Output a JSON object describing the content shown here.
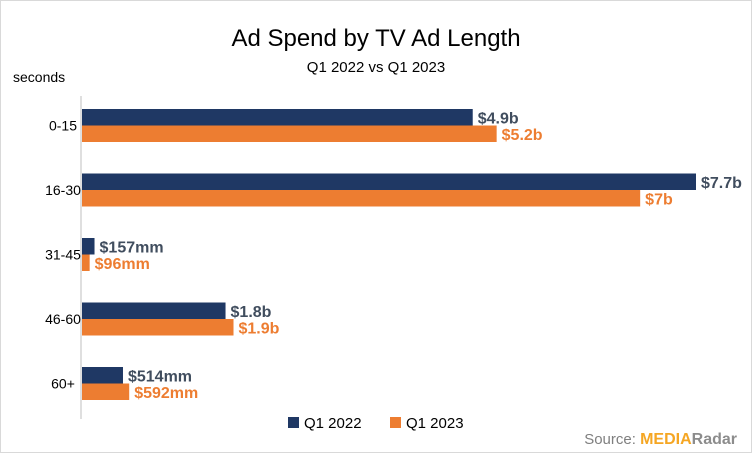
{
  "chart_data": {
    "type": "bar",
    "orientation": "horizontal",
    "title": "Ad Spend by TV Ad Length",
    "subtitle": "Q1 2022 vs Q1 2023",
    "ylabel": "seconds",
    "categories": [
      "0-15",
      "16-30",
      "31-45",
      "46-60",
      "60+"
    ],
    "unit": "billions USD",
    "xlim": [
      0,
      7.7
    ],
    "grid": false,
    "legend_position": "bottom",
    "series": [
      {
        "name": "Q1 2022",
        "color": "#1f3864",
        "values": [
          4.9,
          7.7,
          0.157,
          1.8,
          0.514
        ],
        "labels": [
          "$4.9b",
          "$7.7b",
          "$157mm",
          "$1.8b",
          "$514mm"
        ]
      },
      {
        "name": "Q1 2023",
        "color": "#ed7d31",
        "values": [
          5.2,
          7.0,
          0.096,
          1.9,
          0.592
        ],
        "labels": [
          "$5.2b",
          "$7b",
          "$96mm",
          "$1.9b",
          "$592mm"
        ]
      }
    ]
  },
  "source": {
    "prefix": "Source: ",
    "brand_part1": "MEDIA",
    "brand_part2": "Radar",
    "brand_color1": "#f5a623",
    "brand_color2": "#8c8c8c"
  },
  "colors": {
    "label_2022": "#404d5e",
    "label_2023": "#ed7d31",
    "axis": "#bfbfbf"
  }
}
